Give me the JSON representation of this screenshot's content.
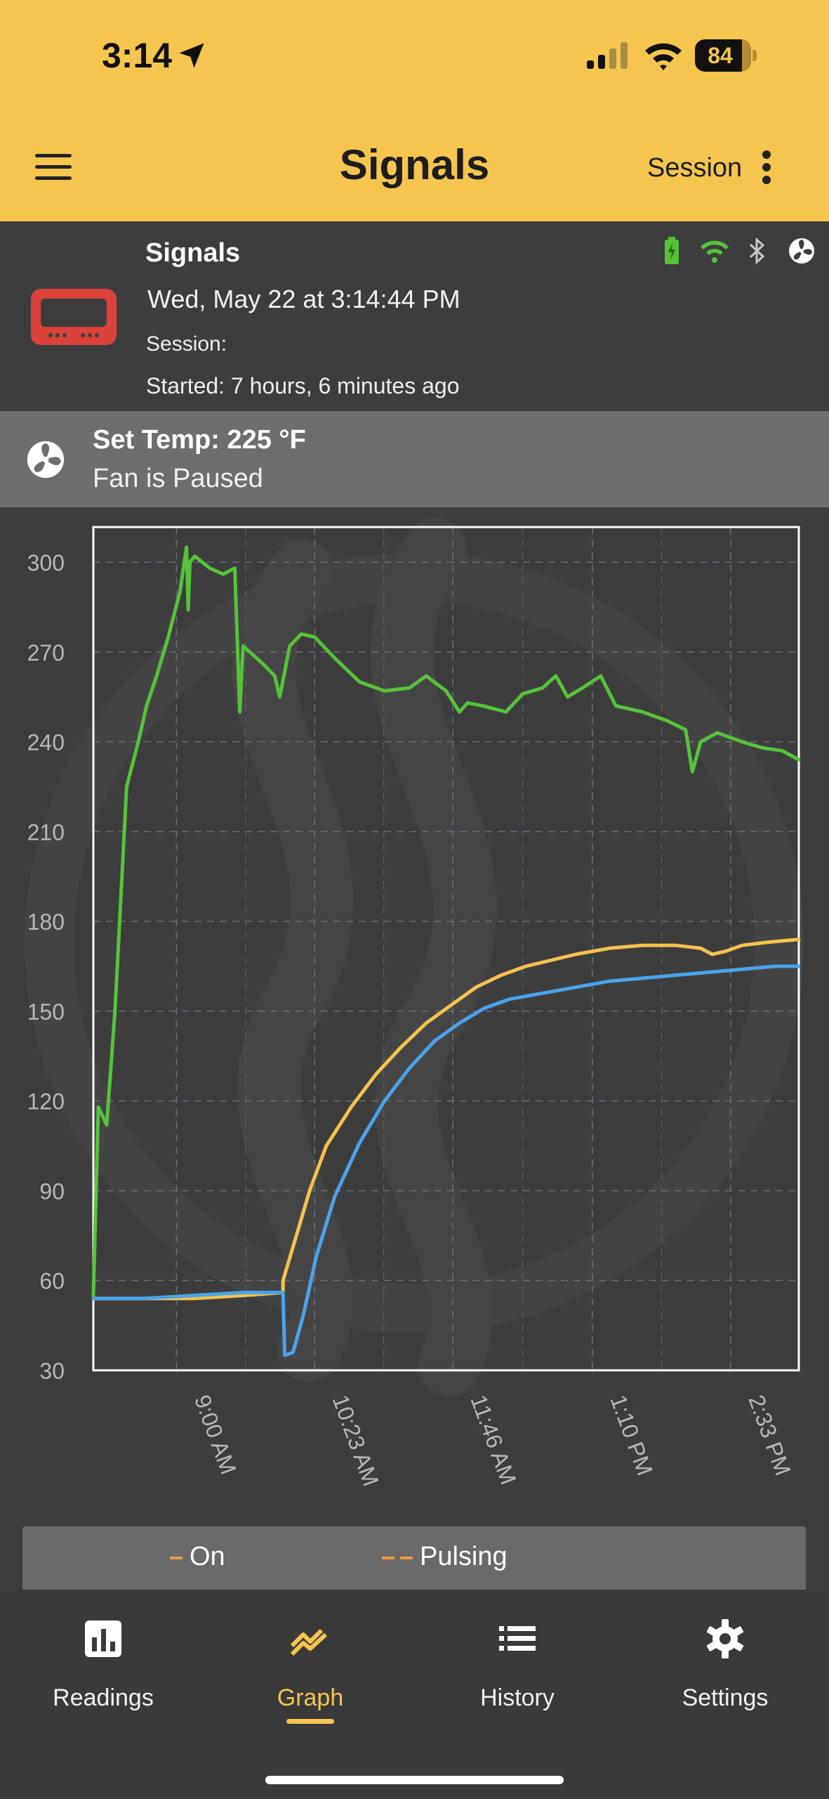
{
  "status_bar": {
    "time": "3:14",
    "battery": "84",
    "battery_level": 0.84
  },
  "app_bar": {
    "title": "Signals",
    "session_label": "Session"
  },
  "device": {
    "name": "Signals",
    "date": "Wed, May 22  at 3:14:44 PM",
    "session": "Session:",
    "started": "Started: 7 hours, 6 minutes ago",
    "icons": [
      "battery-charging-icon",
      "wifi-icon",
      "bluetooth-icon",
      "fan-icon"
    ],
    "accent_color": "#d9433a"
  },
  "fan": {
    "set_temp": "Set Temp: 225 °F",
    "status": "Fan is Paused"
  },
  "chart_data": {
    "type": "line",
    "ylim": [
      30,
      310
    ],
    "yticks": [
      "300",
      "270",
      "240",
      "210",
      "180",
      "150",
      "120",
      "90",
      "60",
      "30"
    ],
    "x_labels": [
      "9:00 AM",
      "10:23 AM",
      "11:46 AM",
      "1:10 PM",
      "2:33 PM"
    ],
    "grid": true,
    "x_start": "8:10 AM",
    "x_end": "3:14 PM",
    "series": [
      {
        "color": "#55c33a",
        "x": [
          "8:10 AM",
          "8:13 AM",
          "8:18 AM",
          "8:23 AM",
          "8:30 AM",
          "8:37 AM",
          "8:42 AM",
          "8:48 AM",
          "8:55 AM",
          "9:02 AM",
          "9:06 AM",
          "9:07 AM",
          "9:08 AM",
          "9:11 AM",
          "9:20 AM",
          "9:28 AM",
          "9:35 AM",
          "9:38 AM",
          "9:40 AM",
          "9:44 AM",
          "9:52 AM",
          "9:59 AM",
          "10:02 AM",
          "10:08 AM",
          "10:15 AM",
          "10:23 AM",
          "10:35 AM",
          "10:50 AM",
          "11:05 AM",
          "11:20 AM",
          "11:30 AM",
          "11:42 AM",
          "11:50 AM",
          "11:55 AM",
          "12:04 PM",
          "12:18 PM",
          "12:28 PM",
          "12:40 PM",
          "12:48 PM",
          "12:55 PM",
          "1:04 PM",
          "1:15 PM",
          "1:24 PM",
          "1:40 PM",
          "1:55 PM",
          "2:06 PM",
          "2:10 PM",
          "2:15 PM",
          "2:25 PM",
          "2:40 PM",
          "2:52 PM",
          "3:04 PM",
          "3:14 PM"
        ],
        "y": [
          55,
          118,
          112,
          150,
          225,
          240,
          252,
          262,
          275,
          290,
          305,
          284,
          300,
          302,
          298,
          296,
          298,
          250,
          272,
          270,
          266,
          262,
          255,
          272,
          276,
          275,
          268,
          260,
          257,
          258,
          262,
          257,
          250,
          253,
          252,
          250,
          256,
          258,
          262,
          255,
          258,
          262,
          252,
          250,
          247,
          244,
          230,
          240,
          243,
          240,
          238,
          237,
          234
        ]
      },
      {
        "color": "#f5c24f",
        "x": [
          "8:10 AM",
          "8:40 AM",
          "9:10 AM",
          "9:40 AM",
          "10:04 AM",
          "10:04 AM",
          "10:12 AM",
          "10:20 AM",
          "10:30 AM",
          "10:45 AM",
          "11:00 AM",
          "11:15 AM",
          "11:30 AM",
          "11:45 AM",
          "12:00 PM",
          "12:15 PM",
          "12:30 PM",
          "12:45 PM",
          "1:00 PM",
          "1:20 PM",
          "1:40 PM",
          "2:00 PM",
          "2:15 PM",
          "2:22 PM",
          "2:30 PM",
          "2:40 PM",
          "2:55 PM",
          "3:14 PM"
        ],
        "y": [
          54,
          54,
          54,
          55,
          56,
          60,
          75,
          90,
          105,
          118,
          129,
          138,
          146,
          152,
          158,
          162,
          165,
          167,
          169,
          171,
          172,
          172,
          171,
          169,
          170,
          172,
          173,
          174
        ]
      },
      {
        "color": "#4aa3ec",
        "x": [
          "8:10 AM",
          "8:40 AM",
          "9:10 AM",
          "9:40 AM",
          "10:04 AM",
          "10:05 AM",
          "10:10 AM",
          "10:16 AM",
          "10:24 AM",
          "10:35 AM",
          "10:50 AM",
          "11:05 AM",
          "11:20 AM",
          "11:35 AM",
          "11:50 AM",
          "12:05 PM",
          "12:20 PM",
          "12:40 PM",
          "1:00 PM",
          "1:20 PM",
          "1:40 PM",
          "2:00 PM",
          "2:20 PM",
          "2:40 PM",
          "3:00 PM",
          "3:14 PM"
        ],
        "y": [
          54,
          54,
          55,
          56,
          56,
          35,
          36,
          48,
          68,
          88,
          106,
          120,
          131,
          140,
          146,
          151,
          154,
          156,
          158,
          160,
          161,
          162,
          163,
          164,
          165,
          165
        ]
      }
    ]
  },
  "legend": {
    "on": "On",
    "pulsing": "Pulsing",
    "color": "#f09a3c"
  },
  "nav": {
    "readings": "Readings",
    "graph": "Graph",
    "history": "History",
    "settings": "Settings",
    "active": "Graph"
  }
}
